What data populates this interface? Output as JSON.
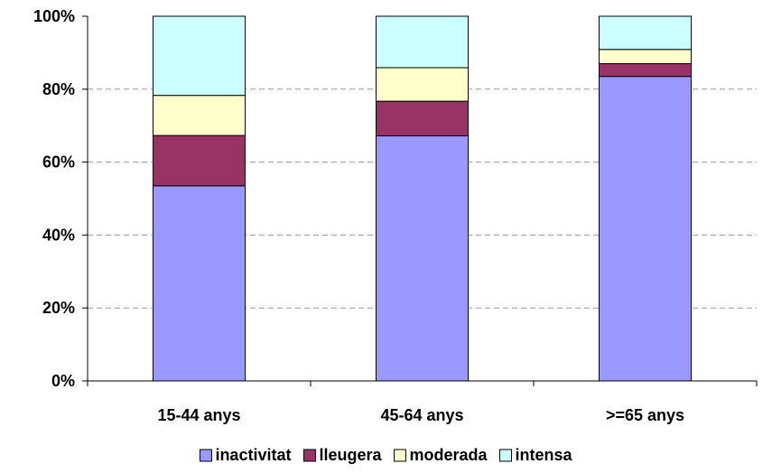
{
  "chart_data": {
    "type": "bar",
    "stacked": true,
    "percent_stacked": true,
    "title": "",
    "xlabel": "",
    "ylabel": "",
    "ylim": [
      0,
      100
    ],
    "yticks": [
      "0%",
      "20%",
      "40%",
      "60%",
      "80%",
      "100%"
    ],
    "categories": [
      "15-44 anys",
      "45-64 anys",
      ">=65 anys"
    ],
    "series": [
      {
        "name": "inactivitat",
        "color": "#9999ff",
        "values": [
          53.5,
          67.2,
          83.5
        ]
      },
      {
        "name": "lleugera",
        "color": "#993366",
        "values": [
          13.8,
          9.5,
          3.5
        ]
      },
      {
        "name": "moderada",
        "color": "#ffffcc",
        "values": [
          11.0,
          9.2,
          3.9
        ]
      },
      {
        "name": "intensa",
        "color": "#ccffff",
        "values": [
          21.7,
          14.1,
          9.1
        ]
      }
    ],
    "grid": true,
    "legend_position": "bottom"
  }
}
